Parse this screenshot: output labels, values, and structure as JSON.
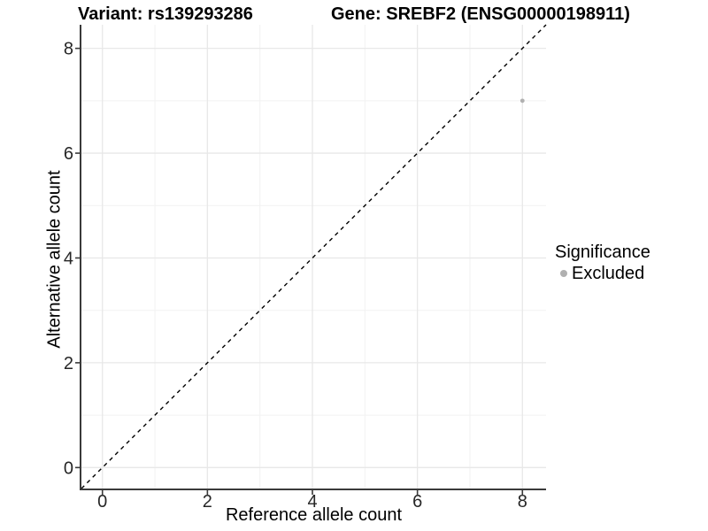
{
  "header": {
    "variant_title": "Variant: rs139293286",
    "gene_title": "Gene: SREBF2 (ENSG00000198911)"
  },
  "axes": {
    "x": {
      "label": "Reference allele count",
      "tick_labels": [
        "0",
        "2",
        "4",
        "6",
        "8"
      ]
    },
    "y": {
      "label": "Alternative allele count",
      "tick_labels": [
        "0",
        "2",
        "4",
        "6",
        "8"
      ]
    }
  },
  "legend": {
    "title": "Significance",
    "items": [
      {
        "label": "Excluded",
        "color": "#b0b0b0"
      }
    ]
  },
  "colors": {
    "background": "#ffffff",
    "axis_line": "#3a3a3a",
    "tick_mark": "#3a3a3a",
    "tick_label": "#262626",
    "grid_major": "#e8e8e8",
    "grid_minor": "#f2f2f2",
    "point": "#b0b0b0",
    "reference_line": "#000000",
    "text": "#000000"
  },
  "chart_data": {
    "type": "scatter",
    "title_left": "Variant: rs139293286",
    "title_right": "Gene: SREBF2 (ENSG00000198911)",
    "xlabel": "Reference allele count",
    "ylabel": "Alternative allele count",
    "xlim": [
      -0.4,
      8.45
    ],
    "ylim": [
      -0.4,
      8.45
    ],
    "x_ticks": [
      0,
      2,
      4,
      6,
      8
    ],
    "y_ticks": [
      0,
      2,
      4,
      6,
      8
    ],
    "x_minor_ticks": [
      1,
      3,
      5,
      7
    ],
    "y_minor_ticks": [
      1,
      3,
      5,
      7
    ],
    "grid": true,
    "legend_position": "right",
    "series": [
      {
        "name": "Excluded",
        "color": "#b0b0b0",
        "marker": "circle",
        "points": [
          [
            8,
            7
          ]
        ]
      }
    ],
    "reference_line": {
      "type": "identity y=x",
      "style": "dashed",
      "color": "#000000"
    }
  }
}
